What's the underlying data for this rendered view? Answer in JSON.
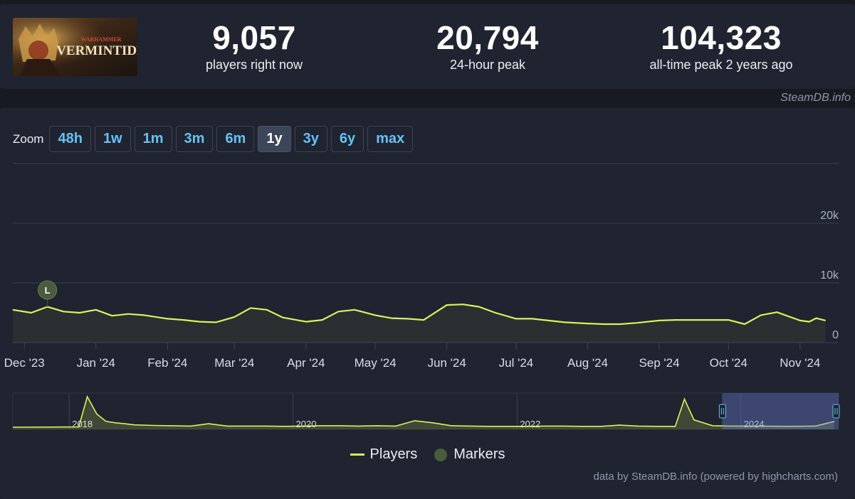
{
  "header": {
    "game_logo_alt": "Warhammer Vermintide 2",
    "logo_text_top": "WARHAMMER",
    "logo_text_main": "VERMINTIDE"
  },
  "stats": {
    "current": {
      "value": "9,057",
      "label": "players right now"
    },
    "peak24": {
      "value": "20,794",
      "label": "24-hour peak"
    },
    "alltime": {
      "value": "104,323",
      "label": "all-time peak 2 years ago"
    }
  },
  "credit_top": "SteamDB.info",
  "zoom": {
    "label": "Zoom",
    "options": [
      "48h",
      "1w",
      "1m",
      "3m",
      "6m",
      "1y",
      "3y",
      "6y",
      "max"
    ],
    "active": "1y"
  },
  "legend": {
    "players": "Players",
    "markers": "Markers"
  },
  "credit_bottom": "data by SteamDB.info (powered by highcharts.com)",
  "colors": {
    "line": "#d7f35b",
    "accent": "#67c1f5",
    "panel": "#1f2430",
    "background": "#171a21",
    "marker": "#4c5a3e"
  },
  "chart_data": [
    {
      "type": "line",
      "x_tick_labels": [
        "Dec '23",
        "Jan '24",
        "Feb '24",
        "Mar '24",
        "Apr '24",
        "May '24",
        "Jun '24",
        "Jul '24",
        "Aug '24",
        "Sep '24",
        "Oct '24",
        "Nov '24"
      ],
      "y_tick_labels": [
        "0",
        "10k",
        "20k"
      ],
      "ylim": [
        0,
        20000
      ],
      "series": [
        {
          "name": "Players",
          "x": [
            "2023-11-26",
            "2023-12-04",
            "2023-12-11",
            "2023-12-18",
            "2023-12-25",
            "2024-01-01",
            "2024-01-08",
            "2024-01-15",
            "2024-01-22",
            "2024-02-01",
            "2024-02-08",
            "2024-02-15",
            "2024-02-22",
            "2024-03-01",
            "2024-03-08",
            "2024-03-15",
            "2024-03-22",
            "2024-04-01",
            "2024-04-08",
            "2024-04-15",
            "2024-04-22",
            "2024-05-01",
            "2024-05-08",
            "2024-05-15",
            "2024-05-22",
            "2024-06-01",
            "2024-06-08",
            "2024-06-15",
            "2024-06-22",
            "2024-07-01",
            "2024-07-08",
            "2024-07-15",
            "2024-07-22",
            "2024-08-01",
            "2024-08-08",
            "2024-08-15",
            "2024-08-22",
            "2024-09-01",
            "2024-09-08",
            "2024-09-15",
            "2024-09-22",
            "2024-10-01",
            "2024-10-08",
            "2024-10-15",
            "2024-10-22",
            "2024-11-01",
            "2024-11-05",
            "2024-11-08",
            "2024-11-12"
          ],
          "values": [
            5500,
            5000,
            6000,
            5200,
            5000,
            5500,
            4500,
            4800,
            4600,
            4000,
            3800,
            3500,
            3400,
            4300,
            5800,
            5500,
            4200,
            3500,
            3800,
            5200,
            5500,
            4600,
            4100,
            4000,
            3800,
            6300,
            6400,
            6000,
            5000,
            4000,
            4000,
            3700,
            3400,
            3200,
            3100,
            3100,
            3300,
            3700,
            3800,
            3800,
            3800,
            3800,
            3100,
            4600,
            5100,
            3700,
            3500,
            4100,
            3700
          ]
        }
      ],
      "markers": [
        {
          "x": "2023-12-11",
          "label": "L"
        }
      ]
    },
    {
      "type": "area",
      "name": "navigator",
      "x_tick_labels": [
        "2018",
        "2020",
        "2022",
        "2024"
      ],
      "series": [
        {
          "name": "Players",
          "x": [
            "2017-07",
            "2018-02",
            "2018-03",
            "2018-04",
            "2018-05",
            "2018-06",
            "2018-07",
            "2018-08",
            "2018-10",
            "2018-12",
            "2019-02",
            "2019-04",
            "2019-06",
            "2019-08",
            "2019-10",
            "2019-12",
            "2020-02",
            "2020-04",
            "2020-06",
            "2020-08",
            "2020-10",
            "2020-12",
            "2021-02",
            "2021-04",
            "2021-06",
            "2021-08",
            "2021-10",
            "2021-12",
            "2022-02",
            "2022-04",
            "2022-06",
            "2022-08",
            "2022-10",
            "2022-12",
            "2023-02",
            "2023-04",
            "2023-06",
            "2023-07",
            "2023-08",
            "2023-10",
            "2023-12",
            "2024-03",
            "2024-06",
            "2024-09",
            "2024-11"
          ],
          "values": [
            0,
            1000,
            104323,
            45000,
            20000,
            15000,
            12000,
            8000,
            6000,
            5000,
            4000,
            12000,
            4000,
            4000,
            4000,
            3000,
            4000,
            5000,
            5000,
            4000,
            5000,
            4000,
            22000,
            15000,
            5000,
            4000,
            3000,
            3000,
            3000,
            4000,
            4000,
            3000,
            3000,
            7000,
            4000,
            3000,
            3000,
            96000,
            25000,
            5000,
            4000,
            4000,
            3000,
            4000,
            20000
          ]
        }
      ]
    }
  ]
}
